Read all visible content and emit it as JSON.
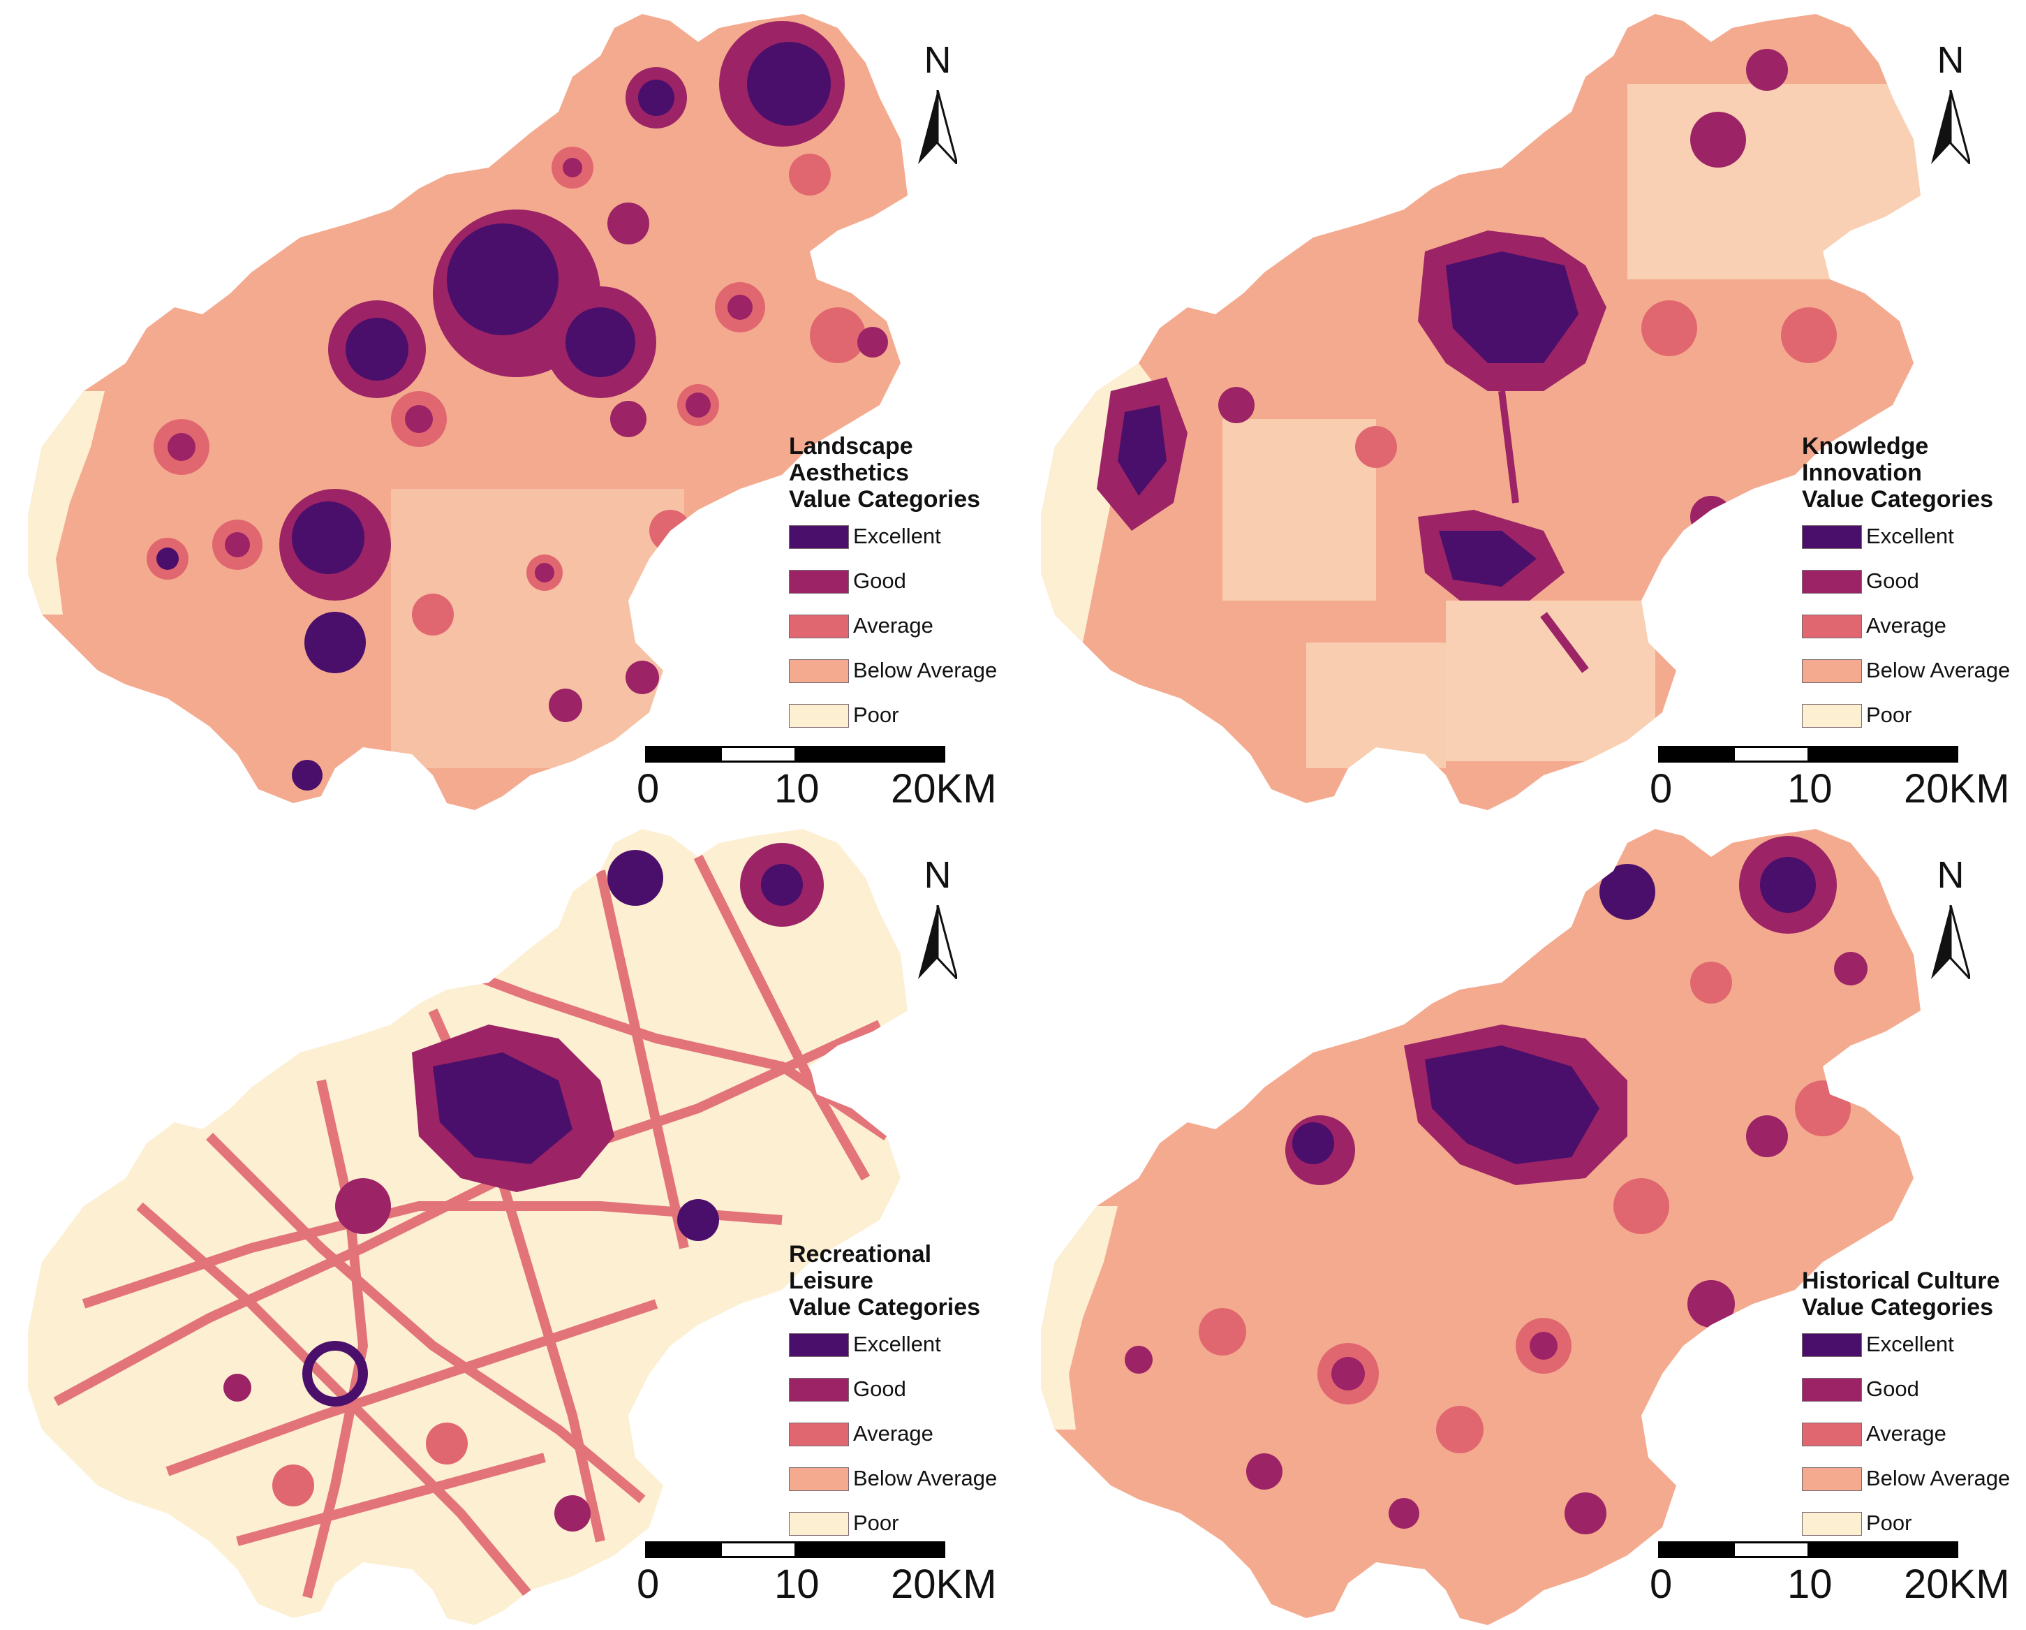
{
  "colors": {
    "excellent": "#4a0f6b",
    "good": "#9b2366",
    "average": "#e06770",
    "below_average": "#f4aa8e",
    "poor": "#fdefd2"
  },
  "north_label": "N",
  "scale": {
    "ticks": [
      "0",
      "10",
      "20KM"
    ]
  },
  "legend_items": [
    {
      "key": "excellent",
      "label": "Excellent"
    },
    {
      "key": "good",
      "label": "Good"
    },
    {
      "key": "average",
      "label": "Average"
    },
    {
      "key": "below_average",
      "label": "Below Average"
    },
    {
      "key": "poor",
      "label": "Poor"
    }
  ],
  "panels": [
    {
      "id": "landscape",
      "title_lines": [
        "Landscape",
        "Aesthetics",
        "Value Categories"
      ]
    },
    {
      "id": "knowledge",
      "title_lines": [
        "Knowledge",
        "Innovation",
        "Value Categories"
      ]
    },
    {
      "id": "recreational",
      "title_lines": [
        "Recreational",
        "Leisure",
        "Value Categories"
      ]
    },
    {
      "id": "historical",
      "title_lines": [
        "Historical Culture",
        "Value Categories"
      ]
    }
  ]
}
